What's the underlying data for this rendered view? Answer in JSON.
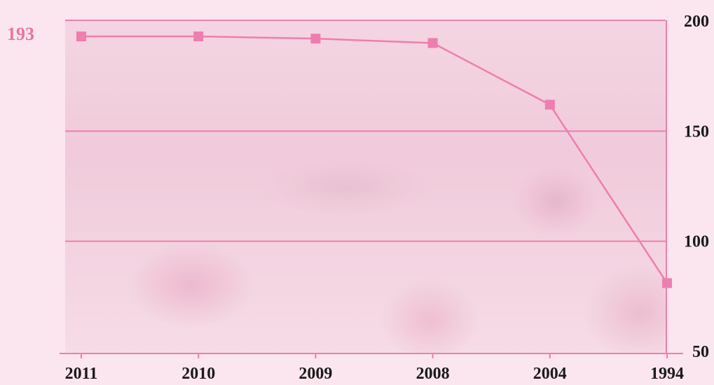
{
  "chart_data": {
    "type": "line",
    "categories": [
      "2011",
      "2010",
      "2009",
      "2008",
      "2004",
      "1994"
    ],
    "values": [
      193,
      193,
      192,
      190,
      162,
      81
    ],
    "ylim": [
      50,
      200
    ],
    "yticks": [
      "200",
      "150",
      "100",
      "50"
    ],
    "grid": true,
    "y_axis_side": "right",
    "highlight_label": "193",
    "colors": {
      "line": "#ee7eae",
      "marker": "#ee7eae",
      "grid": "#ee7eae",
      "label": "#e8749f"
    }
  }
}
